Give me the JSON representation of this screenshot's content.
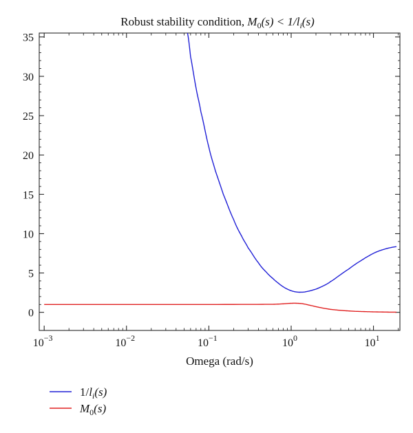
{
  "chart_data": {
    "type": "line",
    "title": "Robust stability condition, M0(s) < 1/li(s)",
    "title_parts": {
      "prefix": "Robust stability condition, ",
      "m_letter": "M",
      "m_sub": "0",
      "m_arg": "(s) < 1/",
      "l_letter": "l",
      "l_sub": "i",
      "l_arg": "(s)"
    },
    "xlabel": "Omega (rad/s)",
    "ylabel": "",
    "xscale": "log",
    "xlim": [
      0.001,
      20
    ],
    "ylim": [
      -2.3,
      35.5
    ],
    "x_ticks": [
      {
        "value": 0.001,
        "base": "10",
        "exp": "−3"
      },
      {
        "value": 0.01,
        "base": "10",
        "exp": "−2"
      },
      {
        "value": 0.1,
        "base": "10",
        "exp": "−1"
      },
      {
        "value": 1,
        "base": "10",
        "exp": "0"
      },
      {
        "value": 10,
        "base": "10",
        "exp": "1"
      }
    ],
    "y_ticks": [
      0,
      5,
      10,
      15,
      20,
      25,
      30,
      35
    ],
    "grid": false,
    "legend_position": "bottom-left (below plot)",
    "series": [
      {
        "name": "1/li(s)",
        "legend_parts": {
          "pre": "1/",
          "letter": "l",
          "sub": "i",
          "arg": "(s)"
        },
        "color": "#1f1fd6",
        "x": [
          0.055,
          0.06,
          0.07,
          0.08,
          0.1,
          0.12,
          0.15,
          0.2,
          0.25,
          0.3,
          0.4,
          0.5,
          0.6,
          0.7,
          0.8,
          0.9,
          1.0,
          1.1,
          1.2,
          1.3,
          1.5,
          2,
          2.5,
          3,
          4,
          5,
          6,
          7,
          8,
          10,
          12,
          15,
          19
        ],
        "y": [
          35.5,
          32.5,
          28.5,
          25.5,
          21.0,
          18.0,
          15.0,
          11.8,
          9.7,
          8.2,
          6.3,
          5.1,
          4.3,
          3.7,
          3.25,
          2.95,
          2.75,
          2.63,
          2.57,
          2.56,
          2.62,
          2.95,
          3.4,
          3.9,
          4.8,
          5.5,
          6.1,
          6.55,
          6.95,
          7.5,
          7.85,
          8.15,
          8.35
        ]
      },
      {
        "name": "M0(s)",
        "legend_parts": {
          "letter": "M",
          "sub": "0",
          "arg": "(s)"
        },
        "color": "#e02020",
        "x": [
          0.001,
          0.01,
          0.1,
          0.6,
          0.8,
          1.0,
          1.2,
          1.4,
          1.6,
          2,
          2.5,
          3,
          4,
          5,
          6,
          8,
          10,
          15,
          19
        ],
        "y": [
          1.0,
          1.0,
          1.0,
          1.02,
          1.08,
          1.15,
          1.15,
          1.08,
          0.95,
          0.72,
          0.52,
          0.38,
          0.25,
          0.18,
          0.13,
          0.09,
          0.06,
          0.03,
          0.02
        ]
      }
    ]
  }
}
